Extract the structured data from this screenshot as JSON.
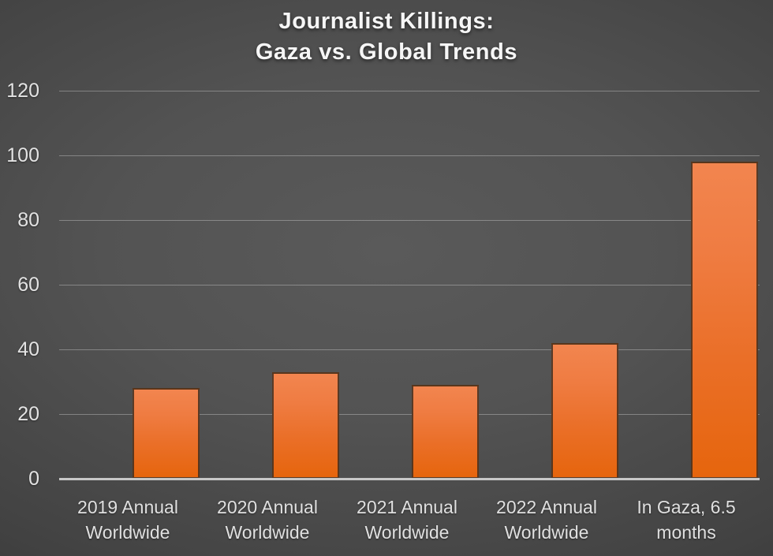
{
  "title": {
    "line1": "Journalist Killings:",
    "line2": "Gaza vs. Global Trends"
  },
  "chart_data": {
    "type": "bar",
    "title": "Journalist Killings: Gaza vs. Global Trends",
    "categories": [
      "2019 Annual Worldwide",
      "2020 Annual Worldwide",
      "2021 Annual Worldwide",
      "2022 Annual Worldwide",
      "In Gaza, 6.5 months"
    ],
    "category_lines": [
      [
        "2019 Annual",
        "Worldwide"
      ],
      [
        "2020 Annual",
        "Worldwide"
      ],
      [
        "2021 Annual",
        "Worldwide"
      ],
      [
        "2022 Annual",
        "Worldwide"
      ],
      [
        "In Gaza, 6.5",
        "months"
      ]
    ],
    "values": [
      28,
      33,
      29,
      42,
      98
    ],
    "xlabel": "",
    "ylabel": "",
    "ylim": [
      0,
      120
    ],
    "yticks": [
      0,
      20,
      40,
      60,
      80,
      100,
      120
    ],
    "grid": true,
    "legend": false,
    "colors": {
      "bar_top": "#f2854f",
      "bar_bottom": "#e6650d",
      "bar_outline": "#3e2e20",
      "background_center": "#5a5a5a",
      "background_edge": "#2a2a2a",
      "gridline": "#848484",
      "baseline": "#c7c7c7",
      "text": "#e3e3e3",
      "title_text": "#f6f6f6"
    }
  }
}
